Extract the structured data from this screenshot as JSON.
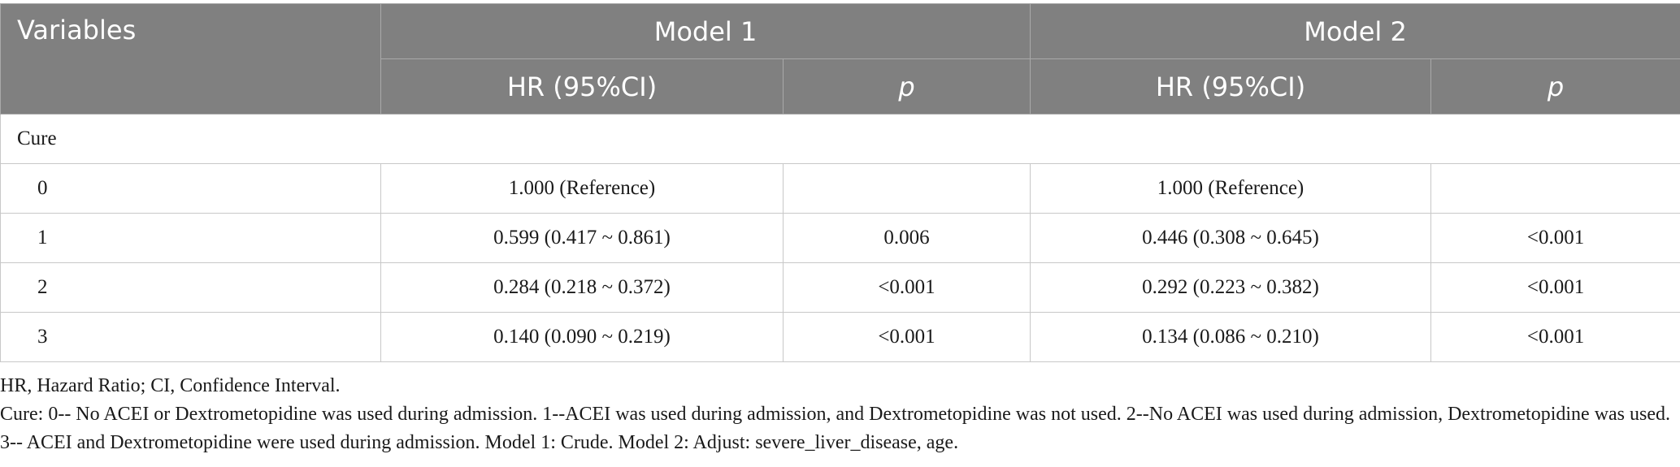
{
  "header": {
    "variables": "Variables",
    "model1": "Model 1",
    "model2": "Model 2",
    "hr": "HR (95%CI)",
    "p": "p"
  },
  "section": "Cure",
  "rows": [
    {
      "label": "0",
      "m1_hr": "1.000 (Reference)",
      "m1_p": "",
      "m2_hr": "1.000 (Reference)",
      "m2_p": ""
    },
    {
      "label": "1",
      "m1_hr": "0.599 (0.417 ~ 0.861)",
      "m1_p": "0.006",
      "m2_hr": "0.446 (0.308 ~ 0.645)",
      "m2_p": "<0.001"
    },
    {
      "label": "2",
      "m1_hr": "0.284 (0.218 ~ 0.372)",
      "m1_p": "<0.001",
      "m2_hr": "0.292 (0.223 ~ 0.382)",
      "m2_p": "<0.001"
    },
    {
      "label": "3",
      "m1_hr": "0.140 (0.090 ~ 0.219)",
      "m1_p": "<0.001",
      "m2_hr": "0.134 (0.086 ~ 0.210)",
      "m2_p": "<0.001"
    }
  ],
  "notes": [
    "HR, Hazard Ratio; CI, Confidence Interval.",
    "Cure: 0-- No ACEI or Dextrometopidine was used during admission. 1--ACEI was used during admission, and Dextrometopidine was not used. 2--No ACEI was used during admission, Dextrometopidine was used. 3-- ACEI and Dextrometopidine were used during admission. Model 1: Crude. Model 2: Adjust: severe_liver_disease, age."
  ],
  "colors": {
    "header_bg": "#808080",
    "header_text": "#ffffff",
    "grid": "#c8c8c8"
  }
}
